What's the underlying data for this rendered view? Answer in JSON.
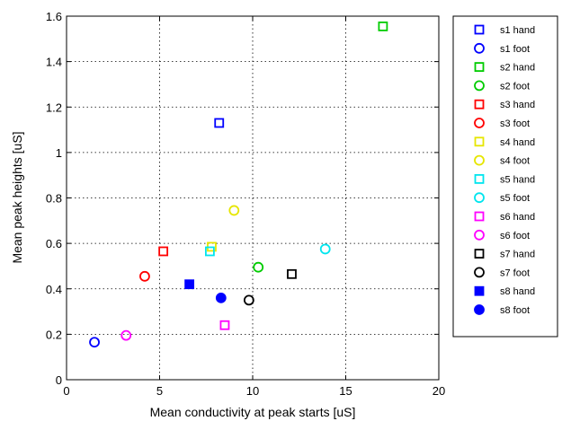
{
  "chart_data": {
    "type": "scatter",
    "title": "",
    "xlabel": "Mean conductivity at peak starts [uS]",
    "ylabel": "Mean peak heights [uS]",
    "xlim": [
      0,
      20
    ],
    "ylim": [
      0,
      1.6
    ],
    "xticks": [
      "0",
      "5",
      "10",
      "15",
      "20"
    ],
    "yticks": [
      "0",
      "0.2",
      "0.4",
      "0.6",
      "0.8",
      "1",
      "1.2",
      "1.4",
      "1.6"
    ],
    "grid": true,
    "legend_position": "outside-right",
    "series": [
      {
        "name": "s1 hand",
        "marker": "square",
        "filled": false,
        "color": "#0000ff",
        "points": [
          [
            8.2,
            1.13
          ]
        ]
      },
      {
        "name": "s1 foot",
        "marker": "circle",
        "filled": false,
        "color": "#0000ff",
        "points": [
          [
            1.5,
            0.165
          ]
        ]
      },
      {
        "name": "s2 hand",
        "marker": "square",
        "filled": false,
        "color": "#00cc00",
        "points": [
          [
            17.0,
            1.555
          ]
        ]
      },
      {
        "name": "s2 foot",
        "marker": "circle",
        "filled": false,
        "color": "#00cc00",
        "points": [
          [
            10.3,
            0.495
          ]
        ]
      },
      {
        "name": "s3 hand",
        "marker": "square",
        "filled": false,
        "color": "#ff0000",
        "points": [
          [
            5.2,
            0.565
          ]
        ]
      },
      {
        "name": "s3 foot",
        "marker": "circle",
        "filled": false,
        "color": "#ff0000",
        "points": [
          [
            4.2,
            0.455
          ]
        ]
      },
      {
        "name": "s4 hand",
        "marker": "square",
        "filled": false,
        "color": "#e6e600",
        "points": [
          [
            7.8,
            0.585
          ]
        ]
      },
      {
        "name": "s4 foot",
        "marker": "circle",
        "filled": false,
        "color": "#e6e600",
        "points": [
          [
            9.0,
            0.745
          ]
        ]
      },
      {
        "name": "s5 hand",
        "marker": "square",
        "filled": false,
        "color": "#00e5ee",
        "points": [
          [
            7.7,
            0.565
          ]
        ]
      },
      {
        "name": "s5 foot",
        "marker": "circle",
        "filled": false,
        "color": "#00e5ee",
        "points": [
          [
            13.9,
            0.575
          ]
        ]
      },
      {
        "name": "s6 hand",
        "marker": "square",
        "filled": false,
        "color": "#ff00ff",
        "points": [
          [
            8.5,
            0.24
          ]
        ]
      },
      {
        "name": "s6 foot",
        "marker": "circle",
        "filled": false,
        "color": "#ff00ff",
        "points": [
          [
            3.2,
            0.195
          ]
        ]
      },
      {
        "name": "s7 hand",
        "marker": "square",
        "filled": false,
        "color": "#000000",
        "points": [
          [
            12.1,
            0.465
          ]
        ]
      },
      {
        "name": "s7 foot",
        "marker": "circle",
        "filled": false,
        "color": "#000000",
        "points": [
          [
            9.8,
            0.35
          ]
        ]
      },
      {
        "name": "s8 hand",
        "marker": "square",
        "filled": true,
        "color": "#0000ff",
        "points": [
          [
            6.6,
            0.42
          ]
        ]
      },
      {
        "name": "s8 foot",
        "marker": "circle",
        "filled": true,
        "color": "#0000ff",
        "points": [
          [
            8.3,
            0.36
          ]
        ]
      }
    ]
  }
}
